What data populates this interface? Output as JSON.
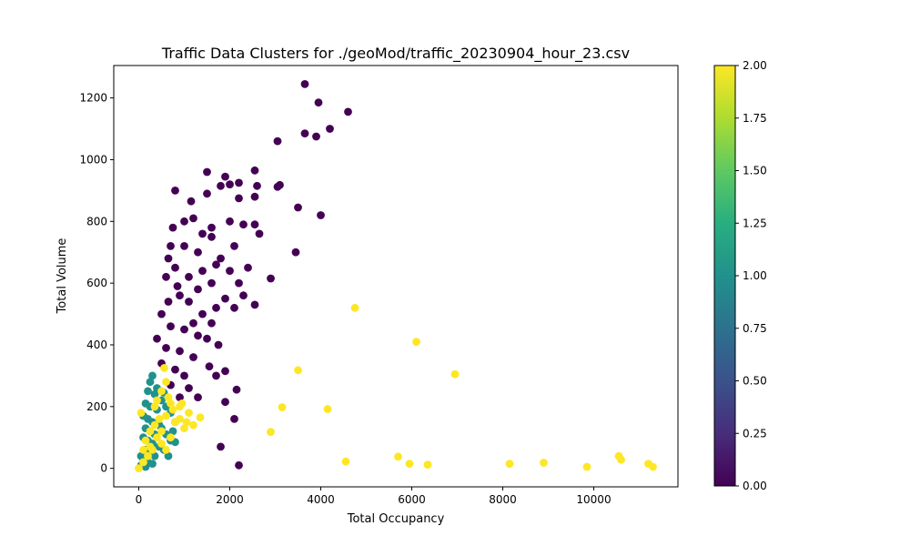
{
  "chart_data": {
    "type": "scatter",
    "title": "Traffic Data Clusters for ./geoMod/traffic_20230904_hour_23.csv",
    "xlabel": "Total Occupancy",
    "ylabel": "Total Volume",
    "xlim": [
      -550,
      11850
    ],
    "ylim": [
      -60,
      1305
    ],
    "xticks": [
      0,
      2000,
      4000,
      6000,
      8000,
      10000
    ],
    "xtick_labels": [
      "0",
      "2000",
      "4000",
      "6000",
      "8000",
      "10000"
    ],
    "yticks": [
      0,
      200,
      400,
      600,
      800,
      1000,
      1200
    ],
    "ytick_labels": [
      "0",
      "200",
      "400",
      "600",
      "800",
      "1000",
      "1200"
    ],
    "grid": false,
    "colorbar": {
      "colormap": "viridis",
      "range": [
        0,
        2
      ],
      "ticks": [
        0,
        0.25,
        0.5,
        0.75,
        1.0,
        1.25,
        1.5,
        1.75,
        2.0
      ],
      "tick_labels": [
        "0.00",
        "0.25",
        "0.50",
        "0.75",
        "1.00",
        "1.25",
        "1.50",
        "1.75",
        "2.00"
      ]
    },
    "cluster_colors": {
      "0": "#440154",
      "1": "#21918c",
      "2": "#fde725"
    },
    "series": [
      {
        "cluster": 0,
        "points": [
          [
            3650,
            1245
          ],
          [
            3950,
            1185
          ],
          [
            4600,
            1155
          ],
          [
            4200,
            1100
          ],
          [
            3650,
            1085
          ],
          [
            3900,
            1075
          ],
          [
            3050,
            1060
          ],
          [
            1500,
            960
          ],
          [
            2550,
            965
          ],
          [
            1900,
            945
          ],
          [
            2600,
            915
          ],
          [
            2200,
            925
          ],
          [
            3100,
            918
          ],
          [
            3050,
            912
          ],
          [
            2000,
            920
          ],
          [
            1800,
            915
          ],
          [
            800,
            900
          ],
          [
            1150,
            865
          ],
          [
            2550,
            880
          ],
          [
            2200,
            875
          ],
          [
            1500,
            890
          ],
          [
            3500,
            845
          ],
          [
            4000,
            820
          ],
          [
            2550,
            790
          ],
          [
            2650,
            760
          ],
          [
            2300,
            790
          ],
          [
            2000,
            800
          ],
          [
            1600,
            780
          ],
          [
            1400,
            760
          ],
          [
            3450,
            700
          ],
          [
            2900,
            615
          ],
          [
            2550,
            530
          ],
          [
            1600,
            750
          ],
          [
            1000,
            720
          ],
          [
            700,
            720
          ],
          [
            2200,
            600
          ],
          [
            1900,
            550
          ],
          [
            1400,
            500
          ],
          [
            1600,
            470
          ],
          [
            1300,
            430
          ],
          [
            1500,
            420
          ],
          [
            1900,
            315
          ],
          [
            1700,
            300
          ],
          [
            1900,
            215
          ],
          [
            2150,
            255
          ],
          [
            2100,
            160
          ],
          [
            1800,
            70
          ],
          [
            2200,
            10
          ],
          [
            800,
            650
          ],
          [
            600,
            620
          ],
          [
            900,
            560
          ],
          [
            1100,
            540
          ],
          [
            500,
            500
          ],
          [
            700,
            460
          ],
          [
            1000,
            450
          ],
          [
            400,
            420
          ],
          [
            600,
            390
          ],
          [
            900,
            380
          ],
          [
            1200,
            360
          ],
          [
            500,
            340
          ],
          [
            800,
            320
          ],
          [
            1000,
            300
          ],
          [
            700,
            270
          ],
          [
            1100,
            260
          ],
          [
            900,
            230
          ],
          [
            1300,
            230
          ],
          [
            1200,
            470
          ],
          [
            1700,
            520
          ],
          [
            1400,
            640
          ],
          [
            1800,
            680
          ],
          [
            2100,
            720
          ],
          [
            1300,
            700
          ],
          [
            1000,
            800
          ],
          [
            1200,
            810
          ],
          [
            1600,
            600
          ],
          [
            2000,
            640
          ],
          [
            2300,
            560
          ],
          [
            1750,
            400
          ],
          [
            1550,
            330
          ],
          [
            750,
            780
          ],
          [
            650,
            680
          ],
          [
            1100,
            620
          ],
          [
            850,
            590
          ],
          [
            650,
            540
          ],
          [
            1300,
            580
          ],
          [
            1700,
            660
          ],
          [
            2400,
            650
          ],
          [
            2100,
            520
          ]
        ]
      },
      {
        "cluster": 1,
        "points": [
          [
            300,
            300
          ],
          [
            250,
            280
          ],
          [
            200,
            250
          ],
          [
            350,
            240
          ],
          [
            150,
            210
          ],
          [
            250,
            200
          ],
          [
            400,
            190
          ],
          [
            100,
            170
          ],
          [
            200,
            160
          ],
          [
            300,
            150
          ],
          [
            450,
            140
          ],
          [
            150,
            130
          ],
          [
            250,
            120
          ],
          [
            350,
            110
          ],
          [
            100,
            100
          ],
          [
            200,
            90
          ],
          [
            300,
            80
          ],
          [
            450,
            70
          ],
          [
            150,
            60
          ],
          [
            250,
            50
          ],
          [
            350,
            40
          ],
          [
            50,
            40
          ],
          [
            100,
            30
          ],
          [
            200,
            20
          ],
          [
            300,
            15
          ],
          [
            50,
            10
          ],
          [
            150,
            5
          ],
          [
            500,
            130
          ],
          [
            600,
            110
          ],
          [
            700,
            90
          ],
          [
            550,
            60
          ],
          [
            650,
            40
          ],
          [
            400,
            260
          ],
          [
            500,
            220
          ],
          [
            600,
            200
          ],
          [
            700,
            180
          ],
          [
            800,
            150
          ],
          [
            750,
            120
          ],
          [
            800,
            85
          ],
          [
            550,
            245
          ]
        ]
      },
      {
        "cluster": 2,
        "points": [
          [
            4750,
            520
          ],
          [
            6100,
            410
          ],
          [
            6950,
            305
          ],
          [
            3500,
            318
          ],
          [
            3150,
            198
          ],
          [
            4150,
            192
          ],
          [
            2900,
            118
          ],
          [
            4550,
            22
          ],
          [
            5700,
            38
          ],
          [
            5950,
            15
          ],
          [
            6350,
            12
          ],
          [
            8150,
            15
          ],
          [
            8900,
            18
          ],
          [
            9850,
            5
          ],
          [
            10550,
            40
          ],
          [
            10600,
            28
          ],
          [
            11200,
            15
          ],
          [
            11300,
            5
          ],
          [
            560,
            325
          ],
          [
            600,
            280
          ],
          [
            500,
            250
          ],
          [
            400,
            220
          ],
          [
            700,
            210
          ],
          [
            900,
            200
          ],
          [
            1100,
            180
          ],
          [
            1350,
            165
          ],
          [
            1200,
            140
          ],
          [
            1000,
            130
          ],
          [
            800,
            150
          ],
          [
            600,
            170
          ],
          [
            450,
            160
          ],
          [
            350,
            140
          ],
          [
            250,
            120
          ],
          [
            400,
            100
          ],
          [
            500,
            80
          ],
          [
            300,
            60
          ],
          [
            200,
            40
          ],
          [
            100,
            20
          ],
          [
            0,
            0
          ],
          [
            150,
            90
          ],
          [
            250,
            70
          ],
          [
            600,
            60
          ],
          [
            700,
            100
          ],
          [
            900,
            160
          ],
          [
            1050,
            150
          ],
          [
            650,
            230
          ],
          [
            750,
            190
          ],
          [
            50,
            180
          ],
          [
            350,
            200
          ],
          [
            950,
            210
          ],
          [
            500,
            120
          ],
          [
            100,
            60
          ]
        ]
      }
    ]
  }
}
